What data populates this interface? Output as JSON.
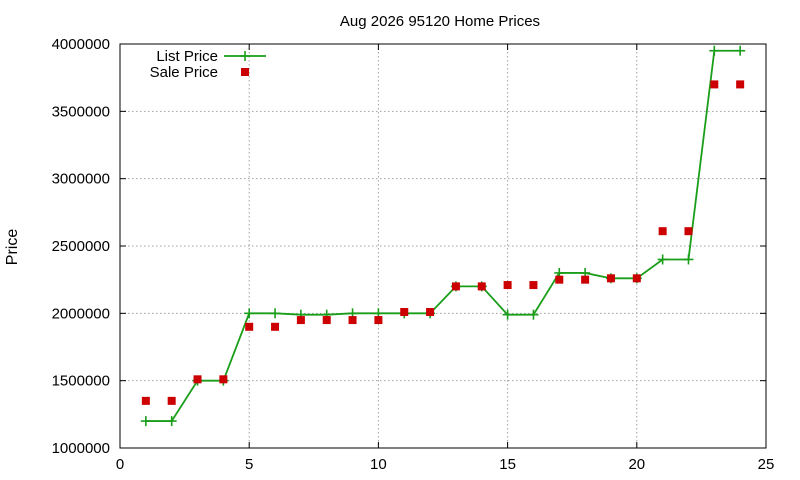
{
  "chart_data": {
    "type": "line",
    "title": "Aug 2026 95120 Home Prices",
    "xlabel": "",
    "ylabel": "Price",
    "xlim": [
      0,
      25
    ],
    "ylim": [
      1000000,
      4000000
    ],
    "xticks": [
      0,
      5,
      10,
      15,
      20,
      25
    ],
    "yticks": [
      1000000,
      1500000,
      2000000,
      2500000,
      3000000,
      3500000,
      4000000
    ],
    "grid": true,
    "legend_position": "top-left",
    "series": [
      {
        "name": "List Price",
        "style": "line-with-plus-markers",
        "color": "#1a9e1a",
        "x": [
          1,
          2,
          3,
          4,
          5,
          6,
          7,
          8,
          9,
          10,
          11,
          12,
          13,
          14,
          15,
          16,
          17,
          18,
          19,
          20,
          21,
          22,
          23,
          24
        ],
        "values": [
          1200000,
          1200000,
          1500000,
          1500000,
          2000000,
          2000000,
          1990000,
          1990000,
          2000000,
          2000000,
          2000000,
          2000000,
          2200000,
          2200000,
          1990000,
          1990000,
          2300000,
          2300000,
          2260000,
          2260000,
          2400000,
          2400000,
          3950000,
          3950000
        ]
      },
      {
        "name": "Sale Price",
        "style": "square-markers",
        "color": "#cc0000",
        "x": [
          1,
          2,
          3,
          4,
          5,
          6,
          7,
          8,
          9,
          10,
          11,
          12,
          13,
          14,
          15,
          16,
          17,
          18,
          19,
          20,
          21,
          22,
          23,
          24
        ],
        "values": [
          1350000,
          1350000,
          1510000,
          1510000,
          1900000,
          1900000,
          1950000,
          1950000,
          1950000,
          1950000,
          2010000,
          2010000,
          2200000,
          2200000,
          2210000,
          2210000,
          2250000,
          2250000,
          2260000,
          2260000,
          2610000,
          2610000,
          3700000,
          3700000
        ]
      }
    ]
  }
}
